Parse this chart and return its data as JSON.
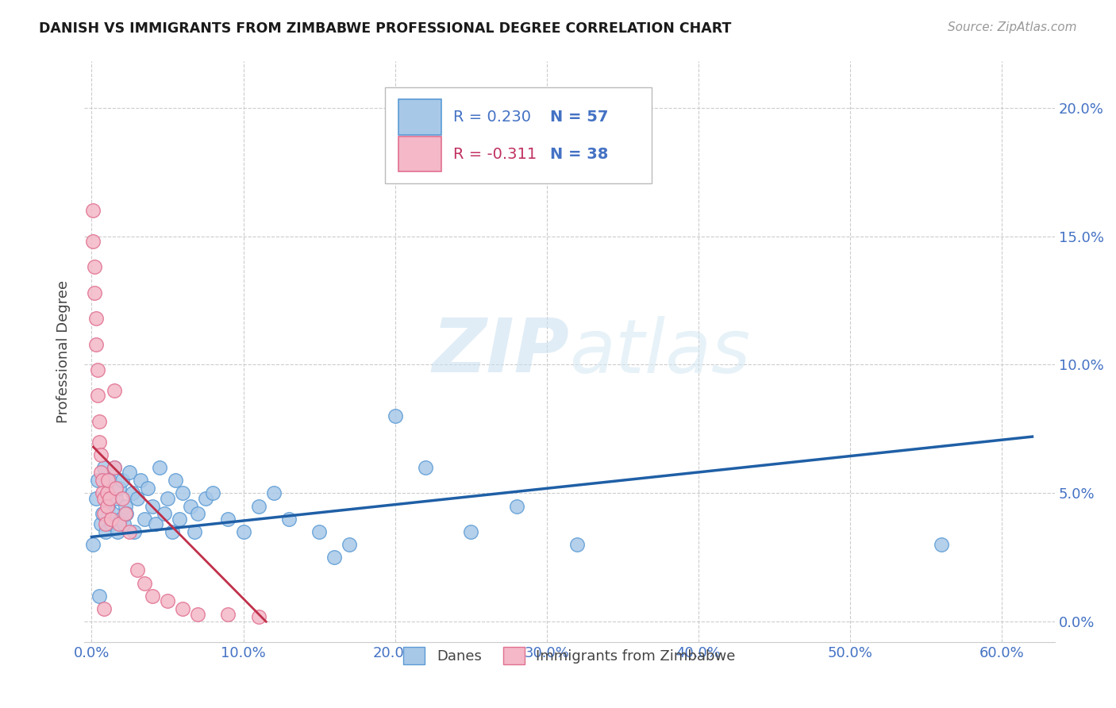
{
  "title": "DANISH VS IMMIGRANTS FROM ZIMBABWE PROFESSIONAL DEGREE CORRELATION CHART",
  "source": "Source: ZipAtlas.com",
  "ylabel": "Professional Degree",
  "xlabel_ticks": [
    "0.0%",
    "10.0%",
    "20.0%",
    "30.0%",
    "40.0%",
    "50.0%",
    "60.0%"
  ],
  "xlabel_vals": [
    0.0,
    0.1,
    0.2,
    0.3,
    0.4,
    0.5,
    0.6
  ],
  "ylabel_ticks": [
    "0.0%",
    "5.0%",
    "10.0%",
    "15.0%",
    "20.0%"
  ],
  "ylabel_vals": [
    0.0,
    0.05,
    0.1,
    0.15,
    0.2
  ],
  "xlim": [
    -0.005,
    0.635
  ],
  "ylim": [
    -0.008,
    0.218
  ],
  "danes_color": "#a8c8e8",
  "danes_edge_color": "#5b9bd5",
  "zim_color": "#f4b8c8",
  "zim_edge_color": "#e07090",
  "danes_R": 0.23,
  "danes_N": 57,
  "zim_R": -0.311,
  "zim_N": 38,
  "danes_line_color": "#1f5fa6",
  "zim_line_color": "#c0304a",
  "watermark_zip": "ZIP",
  "watermark_atlas": "atlas",
  "danes_scatter_x": [
    0.001,
    0.003,
    0.004,
    0.006,
    0.007,
    0.008,
    0.009,
    0.01,
    0.011,
    0.012,
    0.013,
    0.014,
    0.015,
    0.016,
    0.017,
    0.018,
    0.019,
    0.02,
    0.021,
    0.022,
    0.023,
    0.025,
    0.027,
    0.028,
    0.03,
    0.032,
    0.035,
    0.037,
    0.04,
    0.042,
    0.045,
    0.048,
    0.05,
    0.053,
    0.055,
    0.058,
    0.06,
    0.065,
    0.068,
    0.07,
    0.075,
    0.08,
    0.09,
    0.1,
    0.11,
    0.12,
    0.13,
    0.15,
    0.16,
    0.17,
    0.2,
    0.22,
    0.25,
    0.28,
    0.32,
    0.56,
    0.005
  ],
  "danes_scatter_y": [
    0.03,
    0.048,
    0.055,
    0.038,
    0.042,
    0.06,
    0.035,
    0.05,
    0.045,
    0.055,
    0.038,
    0.042,
    0.06,
    0.048,
    0.035,
    0.052,
    0.04,
    0.055,
    0.038,
    0.045,
    0.042,
    0.058,
    0.05,
    0.035,
    0.048,
    0.055,
    0.04,
    0.052,
    0.045,
    0.038,
    0.06,
    0.042,
    0.048,
    0.035,
    0.055,
    0.04,
    0.05,
    0.045,
    0.035,
    0.042,
    0.048,
    0.05,
    0.04,
    0.035,
    0.045,
    0.05,
    0.04,
    0.035,
    0.025,
    0.03,
    0.08,
    0.06,
    0.035,
    0.045,
    0.03,
    0.03,
    0.01
  ],
  "zim_scatter_x": [
    0.001,
    0.001,
    0.002,
    0.002,
    0.003,
    0.003,
    0.004,
    0.004,
    0.005,
    0.005,
    0.006,
    0.006,
    0.007,
    0.007,
    0.008,
    0.008,
    0.009,
    0.01,
    0.01,
    0.011,
    0.012,
    0.013,
    0.015,
    0.016,
    0.018,
    0.02,
    0.022,
    0.025,
    0.03,
    0.035,
    0.04,
    0.05,
    0.06,
    0.07,
    0.09,
    0.11,
    0.015,
    0.008
  ],
  "zim_scatter_y": [
    0.16,
    0.148,
    0.138,
    0.128,
    0.118,
    0.108,
    0.098,
    0.088,
    0.078,
    0.07,
    0.065,
    0.058,
    0.055,
    0.05,
    0.048,
    0.042,
    0.038,
    0.05,
    0.045,
    0.055,
    0.048,
    0.04,
    0.06,
    0.052,
    0.038,
    0.048,
    0.042,
    0.035,
    0.02,
    0.015,
    0.01,
    0.008,
    0.005,
    0.003,
    0.003,
    0.002,
    0.09,
    0.005
  ],
  "danes_line_x": [
    0.0,
    0.62
  ],
  "danes_line_y": [
    0.033,
    0.072
  ],
  "zim_line_x": [
    0.001,
    0.115
  ],
  "zim_line_y": [
    0.068,
    0.0
  ]
}
